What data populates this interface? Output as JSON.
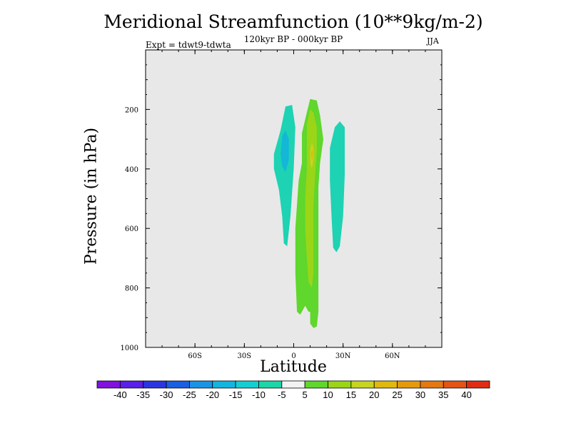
{
  "chart_data": {
    "type": "heatmap",
    "title": "Meridional Streamfunction (10**9kg/m-2)",
    "subtitle": "120kyr BP - 000kyr BP",
    "left_label": "Expt = tdwt9-tdwta",
    "right_label": "JJA",
    "xlabel": "Latitude",
    "ylabel": "Pressure (in hPa)",
    "xlim": [
      -90,
      90
    ],
    "ylim": [
      1000,
      0
    ],
    "x_ticks": [
      {
        "value": -60,
        "label": "60S"
      },
      {
        "value": -30,
        "label": "30S"
      },
      {
        "value": 0,
        "label": "0"
      },
      {
        "value": 30,
        "label": "30N"
      },
      {
        "value": 60,
        "label": "60N"
      }
    ],
    "y_ticks": [
      {
        "value": 200,
        "label": "200"
      },
      {
        "value": 400,
        "label": "400"
      },
      {
        "value": 600,
        "label": "600"
      },
      {
        "value": 800,
        "label": "800"
      },
      {
        "value": 1000,
        "label": "1000"
      }
    ],
    "contours": [
      {
        "level": "-10 to -5",
        "color": "#1dd3b3",
        "points": [
          [
            -12,
            350
          ],
          [
            -8,
            270
          ],
          [
            -5,
            190
          ],
          [
            -1,
            185
          ],
          [
            1,
            260
          ],
          [
            0,
            400
          ],
          [
            -2,
            560
          ],
          [
            -4,
            660
          ],
          [
            -6,
            650
          ],
          [
            -7,
            560
          ],
          [
            -9,
            470
          ],
          [
            -12,
            400
          ]
        ]
      },
      {
        "level": "-15 to -10",
        "color": "#14b7d6",
        "points": [
          [
            -8,
            350
          ],
          [
            -7,
            290
          ],
          [
            -5,
            270
          ],
          [
            -3,
            300
          ],
          [
            -3,
            370
          ],
          [
            -5,
            410
          ],
          [
            -7,
            390
          ]
        ]
      },
      {
        "level": "5 to 10",
        "color": "#5fd72c",
        "points": [
          [
            8,
            210
          ],
          [
            10,
            165
          ],
          [
            14,
            170
          ],
          [
            16,
            220
          ],
          [
            18,
            300
          ],
          [
            16,
            380
          ],
          [
            15,
            460
          ],
          [
            15,
            600
          ],
          [
            15,
            760
          ],
          [
            15,
            880
          ],
          [
            14,
            930
          ],
          [
            12,
            935
          ],
          [
            10,
            920
          ],
          [
            10,
            880
          ],
          [
            9,
            880
          ],
          [
            7,
            860
          ],
          [
            4,
            890
          ],
          [
            2,
            880
          ],
          [
            1,
            750
          ],
          [
            1,
            600
          ],
          [
            3,
            440
          ],
          [
            5,
            380
          ],
          [
            5,
            280
          ]
        ]
      },
      {
        "level": "10 to 15",
        "color": "#9bd518",
        "points": [
          [
            8,
            250
          ],
          [
            10,
            200
          ],
          [
            12,
            210
          ],
          [
            14,
            260
          ],
          [
            14,
            340
          ],
          [
            13,
            420
          ],
          [
            12,
            520
          ],
          [
            12,
            640
          ],
          [
            12,
            750
          ],
          [
            11,
            800
          ],
          [
            9,
            780
          ],
          [
            8,
            700
          ],
          [
            7,
            600
          ],
          [
            7,
            500
          ],
          [
            8,
            400
          ],
          [
            8,
            320
          ]
        ]
      },
      {
        "level": "15 to 20",
        "color": "#c8d422",
        "points": [
          [
            10,
            340
          ],
          [
            11,
            310
          ],
          [
            12,
            330
          ],
          [
            12,
            370
          ],
          [
            11,
            400
          ],
          [
            10,
            380
          ]
        ]
      },
      {
        "level": "20 to 25",
        "color": "#d8b90c",
        "points": [
          [
            10.6,
            350
          ],
          [
            11.2,
            330
          ],
          [
            11.6,
            350
          ],
          [
            11.2,
            375
          ]
        ]
      },
      {
        "level": "-10 to -5 (north)",
        "color": "#1dd3b3",
        "points": [
          [
            22,
            330
          ],
          [
            25,
            260
          ],
          [
            28,
            240
          ],
          [
            31,
            260
          ],
          [
            31,
            420
          ],
          [
            30,
            560
          ],
          [
            28,
            660
          ],
          [
            26,
            680
          ],
          [
            24,
            665
          ],
          [
            23,
            560
          ],
          [
            22,
            440
          ]
        ]
      }
    ],
    "colorbar": {
      "labels": [
        "-40",
        "-35",
        "-30",
        "-25",
        "-20",
        "-15",
        "-10",
        "-5",
        "5",
        "10",
        "15",
        "20",
        "25",
        "30",
        "35",
        "40"
      ],
      "colors": [
        "#8212de",
        "#5a1fe8",
        "#2c34e0",
        "#1a5ee2",
        "#1a93e6",
        "#13b5e0",
        "#14cfd2",
        "#1cd5a8",
        "#f2f2f2",
        "#5fd72c",
        "#9bd518",
        "#c8d422",
        "#dfb90e",
        "#e59a0e",
        "#e47812",
        "#e45416",
        "#e02c12"
      ]
    }
  },
  "plot_background": "#e8e8e8"
}
